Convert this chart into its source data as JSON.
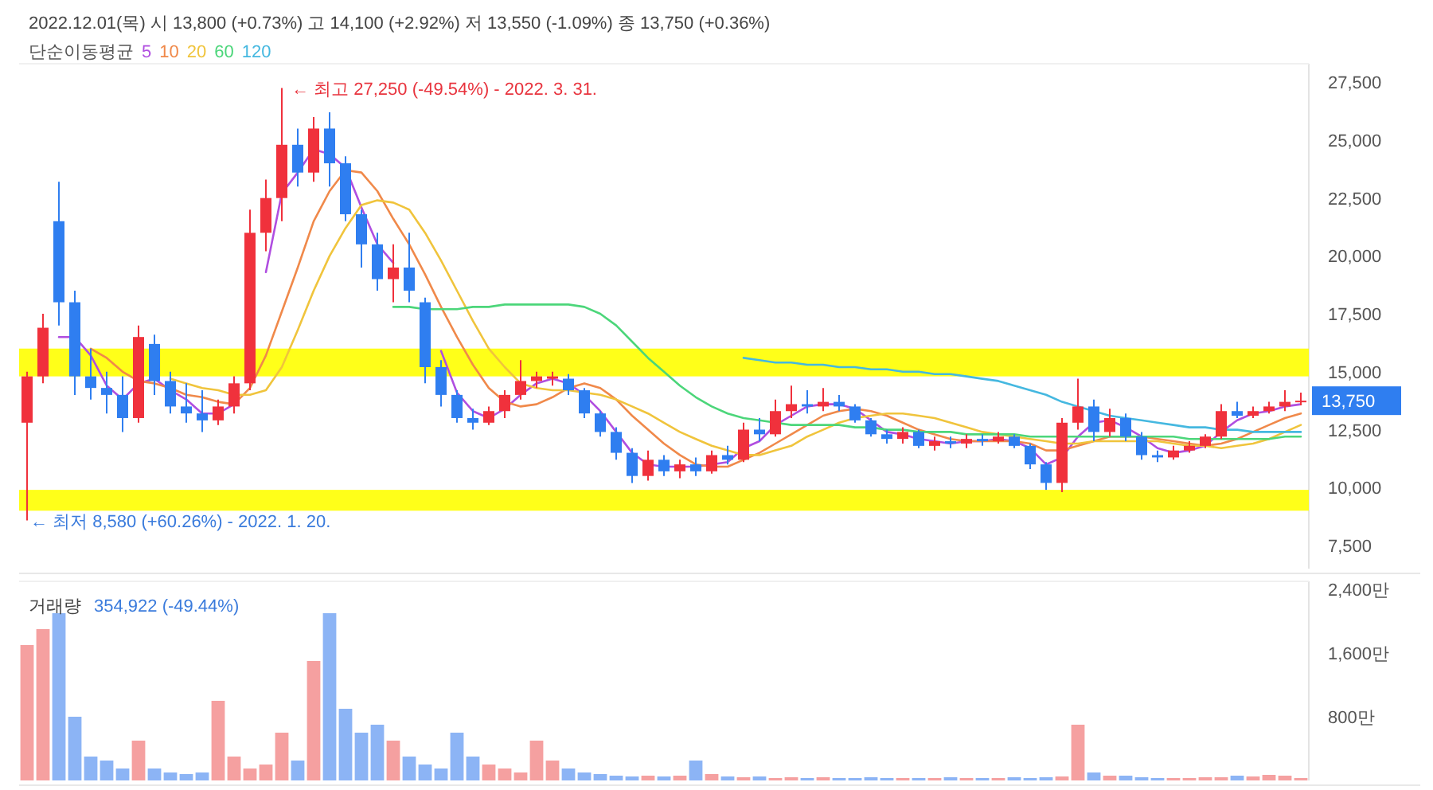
{
  "chart_data": [
    {
      "type": "candlestick",
      "title": "2022.12.01(목) 시 13,800 (+0.73%) 고 14,100 (+2.92%) 저 13,550 (-1.09%) 종 13,750 (+0.36%)",
      "legend_title": "단순이동평균",
      "legend": "top left",
      "tick_labels": "y",
      "categories": [
        null,
        null,
        null,
        null,
        null,
        null,
        null,
        null,
        null,
        null,
        null,
        null,
        null,
        null,
        null,
        null,
        null,
        null,
        null,
        null,
        null,
        null,
        null,
        null,
        null,
        null,
        null,
        null,
        null,
        null,
        null,
        null,
        null,
        null,
        null,
        null,
        null,
        null,
        null,
        null,
        null,
        null,
        null,
        null,
        null,
        null,
        null,
        null,
        null,
        null,
        null,
        null,
        null,
        null,
        null,
        null,
        null,
        null,
        null,
        null,
        null,
        null,
        null,
        null,
        null,
        null,
        null,
        null,
        null,
        null,
        null,
        null,
        null,
        null,
        null,
        null,
        null,
        null,
        null,
        null,
        null
      ],
      "ohlc": [
        [
          12800,
          15000,
          8580,
          14800
        ],
        [
          14800,
          17500,
          14500,
          16900
        ],
        [
          21500,
          23200,
          17000,
          18000
        ],
        [
          18000,
          18500,
          14000,
          14800
        ],
        [
          14800,
          16000,
          13800,
          14300
        ],
        [
          14300,
          15000,
          13200,
          14000
        ],
        [
          14000,
          14800,
          12400,
          13000
        ],
        [
          13000,
          17000,
          12800,
          16500
        ],
        [
          16200,
          16600,
          14000,
          14600
        ],
        [
          14600,
          15000,
          13200,
          13500
        ],
        [
          13500,
          14500,
          12800,
          13200
        ],
        [
          13200,
          14200,
          12400,
          12900
        ],
        [
          12900,
          13800,
          12700,
          13500
        ],
        [
          13500,
          14800,
          13200,
          14500
        ],
        [
          14500,
          22000,
          14200,
          21000
        ],
        [
          21000,
          23300,
          20200,
          22500
        ],
        [
          22500,
          27250,
          21500,
          24800
        ],
        [
          24800,
          25500,
          23000,
          23600
        ],
        [
          23600,
          26000,
          23200,
          25500
        ],
        [
          25500,
          26200,
          23000,
          24000
        ],
        [
          24000,
          24300,
          21500,
          21800
        ],
        [
          21800,
          22000,
          19500,
          20500
        ],
        [
          20500,
          21000,
          18500,
          19000
        ],
        [
          19000,
          20500,
          18000,
          19500
        ],
        [
          19500,
          21000,
          18000,
          18500
        ],
        [
          18000,
          18200,
          14500,
          15200
        ],
        [
          15200,
          15500,
          13500,
          14000
        ],
        [
          14000,
          14200,
          12800,
          13000
        ],
        [
          13000,
          13400,
          12500,
          12800
        ],
        [
          12800,
          13500,
          12700,
          13300
        ],
        [
          13300,
          14200,
          13000,
          14000
        ],
        [
          14000,
          15500,
          13800,
          14600
        ],
        [
          14600,
          15000,
          14300,
          14800
        ],
        [
          14800,
          15000,
          14400,
          14700
        ],
        [
          14700,
          14900,
          14000,
          14200
        ],
        [
          14200,
          14300,
          13000,
          13200
        ],
        [
          13200,
          13300,
          12200,
          12400
        ],
        [
          12400,
          12600,
          11200,
          11500
        ],
        [
          11500,
          11700,
          10200,
          10500
        ],
        [
          10500,
          11600,
          10300,
          11200
        ],
        [
          11200,
          11400,
          10500,
          10700
        ],
        [
          10700,
          11200,
          10400,
          11000
        ],
        [
          11000,
          11300,
          10500,
          10700
        ],
        [
          10700,
          11600,
          10600,
          11400
        ],
        [
          11400,
          11800,
          11000,
          11200
        ],
        [
          11200,
          12800,
          11100,
          12500
        ],
        [
          12500,
          13000,
          12000,
          12300
        ],
        [
          12300,
          13800,
          12200,
          13300
        ],
        [
          13300,
          14400,
          13000,
          13600
        ],
        [
          13600,
          14200,
          13200,
          13500
        ],
        [
          13500,
          14300,
          13300,
          13700
        ],
        [
          13700,
          14000,
          13300,
          13500
        ],
        [
          13500,
          13600,
          12800,
          12900
        ],
        [
          12900,
          13000,
          12200,
          12300
        ],
        [
          12300,
          12500,
          11900,
          12100
        ],
        [
          12100,
          12600,
          11900,
          12400
        ],
        [
          12400,
          12500,
          11700,
          11800
        ],
        [
          11800,
          12200,
          11600,
          12000
        ],
        [
          12000,
          12200,
          11700,
          11900
        ],
        [
          11900,
          12300,
          11700,
          12100
        ],
        [
          12100,
          12300,
          11800,
          12000
        ],
        [
          12000,
          12400,
          11900,
          12200
        ],
        [
          12200,
          12300,
          11700,
          11800
        ],
        [
          11800,
          11900,
          10800,
          11000
        ],
        [
          11000,
          11100,
          9900,
          10200
        ],
        [
          10200,
          13000,
          9800,
          12800
        ],
        [
          12800,
          14700,
          12500,
          13500
        ],
        [
          13500,
          13800,
          12000,
          12400
        ],
        [
          12400,
          13400,
          12200,
          13000
        ],
        [
          13000,
          13200,
          12000,
          12200
        ],
        [
          12200,
          12400,
          11200,
          11400
        ],
        [
          11400,
          11600,
          11100,
          11300
        ],
        [
          11300,
          11800,
          11200,
          11600
        ],
        [
          11600,
          12000,
          11500,
          11800
        ],
        [
          11800,
          12300,
          11700,
          12200
        ],
        [
          12200,
          13600,
          12100,
          13300
        ],
        [
          13300,
          13700,
          13000,
          13100
        ],
        [
          13100,
          13500,
          13000,
          13300
        ],
        [
          13300,
          13700,
          13200,
          13500
        ],
        [
          13500,
          14200,
          13300,
          13700
        ],
        [
          13700,
          14100,
          13550,
          13750
        ]
      ],
      "colors": [
        "#f0313c",
        "#f0313c",
        "#2f7ef0",
        "#2f7ef0",
        "#2f7ef0",
        "#2f7ef0",
        "#2f7ef0",
        "#f0313c",
        "#2f7ef0",
        "#2f7ef0",
        "#2f7ef0",
        "#2f7ef0",
        "#f0313c",
        "#f0313c",
        "#f0313c",
        "#f0313c",
        "#f0313c",
        "#2f7ef0",
        "#f0313c",
        "#2f7ef0",
        "#2f7ef0",
        "#2f7ef0",
        "#2f7ef0",
        "#f0313c",
        "#2f7ef0",
        "#2f7ef0",
        "#2f7ef0",
        "#2f7ef0",
        "#2f7ef0",
        "#f0313c",
        "#f0313c",
        "#f0313c",
        "#f0313c",
        "#f0313c",
        "#2f7ef0",
        "#2f7ef0",
        "#2f7ef0",
        "#2f7ef0",
        "#2f7ef0",
        "#f0313c",
        "#2f7ef0",
        "#f0313c",
        "#2f7ef0",
        "#f0313c",
        "#2f7ef0",
        "#f0313c",
        "#2f7ef0",
        "#f0313c",
        "#f0313c",
        "#2f7ef0",
        "#f0313c",
        "#2f7ef0",
        "#2f7ef0",
        "#2f7ef0",
        "#2f7ef0",
        "#f0313c",
        "#2f7ef0",
        "#f0313c",
        "#2f7ef0",
        "#f0313c",
        "#2f7ef0",
        "#f0313c",
        "#2f7ef0",
        "#2f7ef0",
        "#2f7ef0",
        "#f0313c",
        "#f0313c",
        "#2f7ef0",
        "#f0313c",
        "#2f7ef0",
        "#2f7ef0",
        "#2f7ef0",
        "#f0313c",
        "#f0313c",
        "#f0313c",
        "#f0313c",
        "#2f7ef0",
        "#f0313c",
        "#f0313c",
        "#f0313c",
        "#f0313c"
      ],
      "series": [
        {
          "name": "5",
          "type": "line",
          "color": "#b04ee0",
          "values": [
            null,
            null,
            16500,
            16500,
            15700,
            14400,
            13800,
            14500,
            14700,
            14200,
            13800,
            13200,
            13200,
            13600,
            null,
            19300,
            22700,
            23600,
            24600,
            24400,
            23800,
            22100,
            20500,
            19700,
            null,
            null,
            15900,
            14100,
            13300,
            13000,
            13400,
            14000,
            14500,
            14700,
            14500,
            14000,
            13300,
            12400,
            11500,
            11000,
            10900,
            10900,
            10900,
            11000,
            11100,
            11700,
            12000,
            12700,
            13100,
            13500,
            13600,
            13600,
            13400,
            12900,
            12400,
            12300,
            12100,
            12000,
            11900,
            12000,
            12000,
            12100,
            12000,
            11700,
            11000,
            11300,
            12200,
            12800,
            12900,
            12600,
            12200,
            11700,
            11500,
            11600,
            11800,
            12400,
            12900,
            13200,
            13300,
            13500,
            13600
          ]
        },
        {
          "name": "10",
          "type": "line",
          "color": "#f0894a",
          "values": [
            null,
            null,
            null,
            null,
            16000,
            15600,
            15000,
            14600,
            14500,
            14300,
            14000,
            13900,
            13700,
            13600,
            14300,
            15700,
            17600,
            19500,
            21500,
            22800,
            23700,
            23600,
            22800,
            21600,
            20500,
            19200,
            17800,
            16500,
            15300,
            14300,
            13700,
            13500,
            13600,
            13900,
            14300,
            14500,
            14300,
            13800,
            13100,
            12500,
            11900,
            11400,
            11000,
            10900,
            10900,
            11200,
            11500,
            11900,
            12300,
            12700,
            13100,
            13300,
            13400,
            13300,
            13100,
            12800,
            12500,
            12300,
            12100,
            12000,
            12000,
            12000,
            12000,
            11900,
            11600,
            11600,
            11800,
            12000,
            12200,
            12200,
            12200,
            12100,
            12000,
            11900,
            11800,
            11900,
            12100,
            12400,
            12700,
            13000,
            13200
          ]
        },
        {
          "name": "20",
          "type": "line",
          "color": "#f0c43c",
          "values": [
            null,
            null,
            null,
            null,
            null,
            null,
            null,
            null,
            null,
            14700,
            14500,
            14300,
            14200,
            14000,
            14000,
            14200,
            15200,
            16800,
            18500,
            20000,
            21200,
            22200,
            22400,
            22300,
            22000,
            21000,
            19800,
            18500,
            17200,
            16000,
            15200,
            14500,
            14300,
            14200,
            14200,
            14100,
            14000,
            13800,
            13500,
            13200,
            12800,
            12400,
            12100,
            11800,
            11600,
            11400,
            11400,
            11600,
            11800,
            12200,
            12500,
            12800,
            13000,
            13100,
            13200,
            13200,
            13100,
            13000,
            12800,
            12600,
            12400,
            12300,
            12200,
            12100,
            12000,
            11900,
            11900,
            12000,
            12000,
            12000,
            12000,
            12000,
            11900,
            11800,
            11800,
            11700,
            11800,
            11900,
            12100,
            12400,
            12700
          ]
        },
        {
          "name": "60",
          "type": "line",
          "color": "#4cd67a",
          "values": [
            null,
            null,
            null,
            null,
            null,
            null,
            null,
            null,
            null,
            null,
            null,
            null,
            null,
            null,
            null,
            null,
            null,
            null,
            null,
            null,
            null,
            null,
            null,
            17800,
            17800,
            17700,
            17700,
            17700,
            17800,
            17800,
            17900,
            17900,
            17900,
            17900,
            17900,
            17800,
            17500,
            17000,
            16300,
            15600,
            15000,
            14400,
            13900,
            13500,
            13200,
            13000,
            12900,
            12800,
            12700,
            12700,
            12700,
            12700,
            12600,
            12600,
            12500,
            12500,
            12400,
            12400,
            12400,
            12300,
            12300,
            12300,
            12300,
            12200,
            12200,
            12200,
            12200,
            12200,
            12200,
            12200,
            12200,
            12200,
            12200,
            12100,
            12100,
            12100,
            12100,
            12100,
            12100,
            12200,
            12200
          ]
        },
        {
          "name": "120",
          "type": "line",
          "color": "#45b8e0",
          "values": [
            null,
            null,
            null,
            null,
            null,
            null,
            null,
            null,
            null,
            null,
            null,
            null,
            null,
            null,
            null,
            null,
            null,
            null,
            null,
            null,
            null,
            null,
            null,
            null,
            null,
            null,
            null,
            null,
            null,
            null,
            null,
            null,
            null,
            null,
            null,
            null,
            null,
            null,
            null,
            null,
            null,
            null,
            null,
            null,
            null,
            15600,
            15500,
            15400,
            15400,
            15300,
            15300,
            15200,
            15200,
            15100,
            15100,
            15000,
            15000,
            14900,
            14900,
            14800,
            14700,
            14600,
            14400,
            14200,
            14000,
            13700,
            13500,
            13300,
            13100,
            13000,
            12900,
            12800,
            12700,
            12600,
            12600,
            12500,
            12500,
            12400,
            12400,
            12400,
            12400
          ]
        }
      ],
      "ylim": [
        6500,
        28300
      ],
      "yticks": [
        {
          "value": 7500,
          "label": "7,500"
        },
        {
          "value": 10000,
          "label": "10,000"
        },
        {
          "value": 12500,
          "label": "12,500"
        },
        {
          "value": 15000,
          "label": "15,000"
        },
        {
          "value": 17500,
          "label": "17,500"
        },
        {
          "value": 20000,
          "label": "20,000"
        },
        {
          "value": 22500,
          "label": "22,500"
        },
        {
          "value": 25000,
          "label": "25,000"
        },
        {
          "value": 27500,
          "label": "27,500"
        }
      ],
      "bands": [
        {
          "axis": "y",
          "from": 14800,
          "to": 16000,
          "color": "#ffff00"
        },
        {
          "axis": "y",
          "from": 9000,
          "to": 9900,
          "color": "#ffff00"
        }
      ],
      "annotations": [
        "← 최고 27,250 (-49.54%) - 2022. 3. 31.",
        "← 최저 8,580 (+60.26%) - 2022. 1. 20.",
        "13,750"
      ]
    },
    {
      "type": "bar",
      "title": "거래량",
      "tick_labels": "y",
      "categories": [
        null,
        null,
        null,
        null,
        null,
        null,
        null,
        null,
        null,
        null,
        null,
        null,
        null,
        null,
        null,
        null,
        null,
        null,
        null,
        null,
        null,
        null,
        null,
        null,
        null,
        null,
        null,
        null,
        null,
        null,
        null,
        null,
        null,
        null,
        null,
        null,
        null,
        null,
        null,
        null,
        null,
        null,
        null,
        null,
        null,
        null,
        null,
        null,
        null,
        null,
        null,
        null,
        null,
        null,
        null,
        null,
        null,
        null,
        null,
        null,
        null,
        null,
        null,
        null,
        null,
        null,
        null,
        null,
        null,
        null,
        null,
        null,
        null,
        null,
        null,
        null,
        null,
        null,
        null,
        null,
        null
      ],
      "values": [
        1700,
        1900,
        2100,
        800,
        300,
        250,
        150,
        500,
        150,
        100,
        80,
        100,
        1000,
        300,
        150,
        200,
        600,
        250,
        1500,
        2100,
        900,
        600,
        700,
        500,
        300,
        200,
        150,
        600,
        300,
        200,
        150,
        100,
        500,
        250,
        150,
        100,
        80,
        60,
        50,
        60,
        50,
        60,
        250,
        80,
        50,
        40,
        50,
        30,
        40,
        30,
        40,
        30,
        30,
        40,
        30,
        30,
        30,
        30,
        40,
        30,
        30,
        30,
        40,
        30,
        40,
        50,
        700,
        100,
        60,
        60,
        40,
        30,
        30,
        30,
        40,
        40,
        60,
        50,
        70,
        60,
        30
      ],
      "colors": [
        "#f5a0a0",
        "#f5a0a0",
        "#8cb4f5",
        "#8cb4f5",
        "#8cb4f5",
        "#8cb4f5",
        "#8cb4f5",
        "#f5a0a0",
        "#8cb4f5",
        "#8cb4f5",
        "#8cb4f5",
        "#8cb4f5",
        "#f5a0a0",
        "#f5a0a0",
        "#f5a0a0",
        "#f5a0a0",
        "#f5a0a0",
        "#8cb4f5",
        "#f5a0a0",
        "#8cb4f5",
        "#8cb4f5",
        "#8cb4f5",
        "#8cb4f5",
        "#f5a0a0",
        "#8cb4f5",
        "#8cb4f5",
        "#8cb4f5",
        "#8cb4f5",
        "#8cb4f5",
        "#f5a0a0",
        "#f5a0a0",
        "#f5a0a0",
        "#f5a0a0",
        "#f5a0a0",
        "#8cb4f5",
        "#8cb4f5",
        "#8cb4f5",
        "#8cb4f5",
        "#8cb4f5",
        "#f5a0a0",
        "#8cb4f5",
        "#f5a0a0",
        "#8cb4f5",
        "#f5a0a0",
        "#8cb4f5",
        "#f5a0a0",
        "#8cb4f5",
        "#f5a0a0",
        "#f5a0a0",
        "#8cb4f5",
        "#f5a0a0",
        "#8cb4f5",
        "#8cb4f5",
        "#8cb4f5",
        "#8cb4f5",
        "#f5a0a0",
        "#8cb4f5",
        "#f5a0a0",
        "#8cb4f5",
        "#f5a0a0",
        "#8cb4f5",
        "#f5a0a0",
        "#8cb4f5",
        "#8cb4f5",
        "#8cb4f5",
        "#f5a0a0",
        "#f5a0a0",
        "#8cb4f5",
        "#f5a0a0",
        "#8cb4f5",
        "#8cb4f5",
        "#8cb4f5",
        "#f5a0a0",
        "#f5a0a0",
        "#f5a0a0",
        "#f5a0a0",
        "#8cb4f5",
        "#f5a0a0",
        "#f5a0a0",
        "#f5a0a0",
        "#f5a0a0"
      ],
      "ylim": [
        0,
        2500
      ],
      "yticks": [
        {
          "value": 800,
          "label": "800만"
        },
        {
          "value": 1600,
          "label": "1,600만"
        },
        {
          "value": 2400,
          "label": "2,400만"
        }
      ],
      "annotations": [
        "354,922 (-49.44%)"
      ]
    }
  ]
}
